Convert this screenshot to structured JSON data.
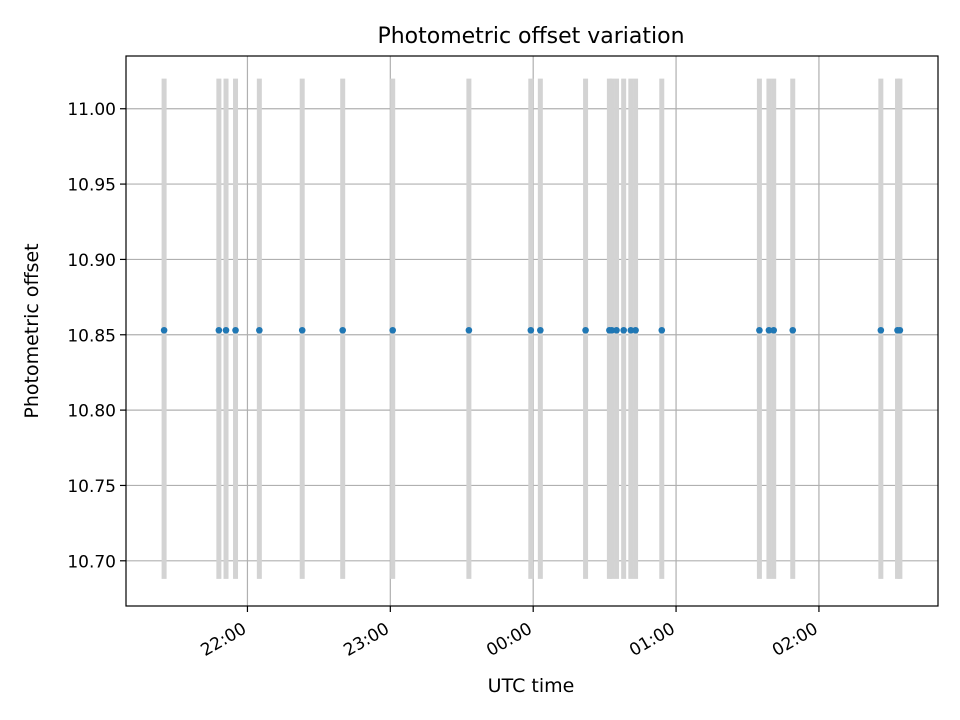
{
  "chart_data": {
    "type": "scatter",
    "title": "Photometric offset variation",
    "xlabel": "UTC time",
    "ylabel": "Photometric offset",
    "xlim": [
      "21:09",
      "02:50"
    ],
    "ylim": [
      10.67,
      11.035
    ],
    "grid": true,
    "x_ticks": [
      "22:00",
      "23:00",
      "00:00",
      "01:00",
      "02:00"
    ],
    "y_ticks": [
      "10.70",
      "10.75",
      "10.80",
      "10.85",
      "10.90",
      "10.95",
      "11.00"
    ],
    "error_bar_range": [
      10.688,
      11.02
    ],
    "colors": {
      "points": "#1f77b4",
      "error_bars": "#d3d3d3",
      "grid": "#b0b0b0"
    },
    "series": [
      {
        "x": [
          "21:25",
          "21:48",
          "21:51",
          "21:55",
          "22:05",
          "22:23",
          "22:40",
          "23:01",
          "23:33",
          "23:59",
          "00:03",
          "00:22",
          "00:32",
          "00:33",
          "00:35",
          "00:38",
          "00:41",
          "00:43",
          "00:54",
          "01:35",
          "01:39",
          "01:41",
          "01:49",
          "02:26",
          "02:33",
          "02:34"
        ],
        "y": [
          10.853,
          10.853,
          10.853,
          10.853,
          10.853,
          10.853,
          10.853,
          10.853,
          10.853,
          10.853,
          10.853,
          10.853,
          10.853,
          10.853,
          10.853,
          10.853,
          10.853,
          10.853,
          10.853,
          10.853,
          10.853,
          10.853,
          10.853,
          10.853,
          10.853,
          10.853
        ]
      }
    ]
  }
}
